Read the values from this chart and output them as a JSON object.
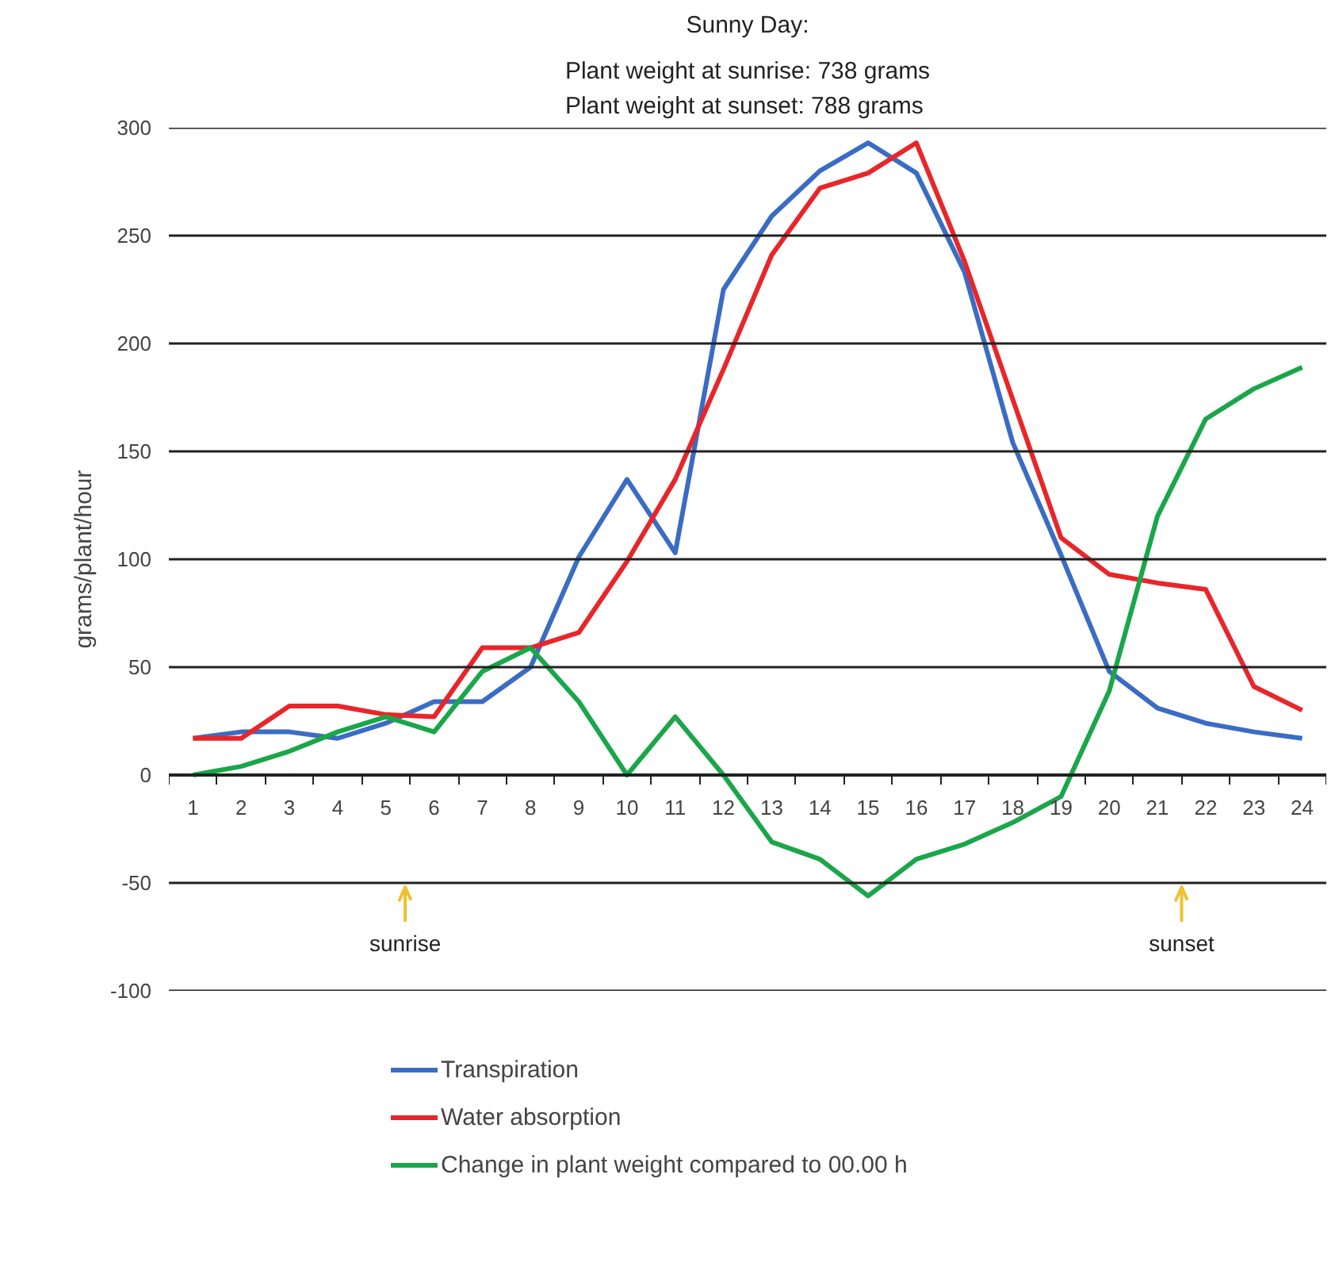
{
  "chart_data": {
    "type": "line",
    "title": "Sunny Day:",
    "subtitle": "Plant weight at sunrise: 738 grams\nPlant weight at sunset: 788 grams",
    "ylabel": "grams/plant/hour",
    "x": [
      1,
      2,
      3,
      4,
      5,
      6,
      7,
      8,
      9,
      10,
      11,
      12,
      13,
      14,
      15,
      16,
      17,
      18,
      19,
      20,
      21,
      22,
      23,
      24
    ],
    "xlim": [
      0.5,
      24.5
    ],
    "xticks": [
      1,
      2,
      3,
      4,
      5,
      6,
      7,
      8,
      9,
      10,
      11,
      12,
      13,
      14,
      15,
      16,
      17,
      18,
      19,
      20,
      21,
      22,
      23,
      24
    ],
    "ylim": [
      -100,
      300
    ],
    "yticks": [
      -100,
      -50,
      0,
      50,
      100,
      150,
      200,
      250,
      300
    ],
    "grid": "y",
    "legend": "bottom",
    "marker": "none",
    "line_style": "solid",
    "series": [
      {
        "name": "Transpiration",
        "color": "#3a6cc4",
        "values": [
          17,
          20,
          20,
          17,
          24,
          34,
          34,
          50,
          101,
          137,
          103,
          225,
          259,
          280,
          293,
          279,
          233,
          154,
          102,
          48,
          31,
          24,
          20,
          17
        ]
      },
      {
        "name": "Water absorption",
        "color": "#e8262a",
        "values": [
          17,
          17,
          32,
          32,
          28,
          27,
          59,
          59,
          66,
          99,
          137,
          188,
          241,
          272,
          279,
          293,
          238,
          174,
          110,
          93,
          89,
          86,
          41,
          30
        ]
      },
      {
        "name": "Change in plant weight compared to 00.00 h",
        "color": "#1aa64a",
        "values": [
          0,
          4,
          11,
          20,
          27,
          20,
          48,
          59,
          34,
          0,
          27,
          0,
          -31,
          -39,
          -56,
          -39,
          -32,
          -22,
          -10,
          39,
          120,
          165,
          179,
          189
        ]
      }
    ],
    "ref_lines": [
      {
        "axis": "x",
        "value": 5.4,
        "label": "sunrise",
        "color": "#f0c030"
      },
      {
        "axis": "x",
        "value": 21.5,
        "label": "sunset",
        "color": "#f0c030"
      }
    ]
  }
}
